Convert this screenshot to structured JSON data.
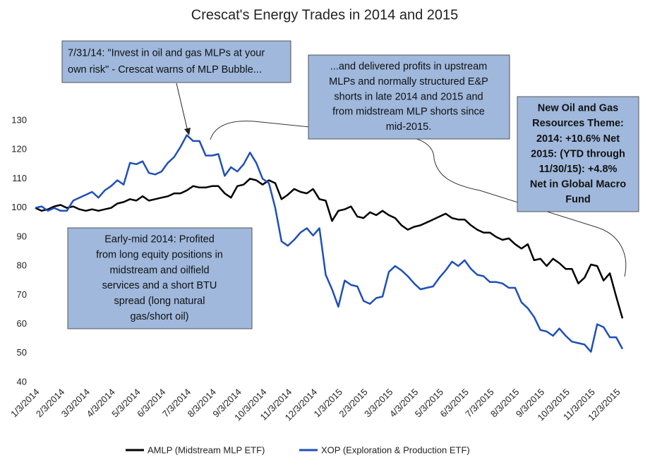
{
  "chart_data": {
    "type": "line",
    "title": "Crescat's Energy Trades in 2014 and 2015",
    "categories": [
      "1/3/2014",
      null,
      null,
      null,
      "2/3/2014",
      null,
      null,
      null,
      "3/3/2014",
      null,
      null,
      null,
      "4/3/2014",
      null,
      null,
      null,
      "5/3/2014",
      null,
      null,
      null,
      "6/3/2014",
      null,
      null,
      null,
      "7/3/2014",
      null,
      null,
      null,
      "8/3/2014",
      null,
      null,
      null,
      "9/3/2014",
      null,
      null,
      null,
      "10/3/2014",
      null,
      null,
      null,
      "11/3/2014",
      null,
      null,
      null,
      "12/3/2014",
      null,
      null,
      null,
      "1/3/2015",
      null,
      null,
      null,
      "2/3/2015",
      null,
      null,
      null,
      "3/3/2015",
      null,
      null,
      null,
      "4/3/2015",
      null,
      null,
      null,
      "5/3/2015",
      null,
      null,
      null,
      "6/3/2015",
      null,
      null,
      null,
      "7/3/2015",
      null,
      null,
      null,
      "8/3/2015",
      null,
      null,
      null,
      "9/3/2015",
      null,
      null,
      null,
      "10/3/2015",
      null,
      null,
      null,
      "11/3/2015",
      null,
      null,
      null,
      "12/3/2015",
      null
    ],
    "series": [
      {
        "name": "AMLP (Midstream MLP ETF)",
        "color": "#000000",
        "values": [
          100,
          99,
          99.5,
          100.5,
          101,
          100,
          100.5,
          99.5,
          99,
          99.5,
          99,
          99.5,
          100,
          101.5,
          102,
          103,
          102.5,
          104,
          102.5,
          103,
          103.5,
          104,
          105,
          105,
          106,
          107.5,
          107,
          107,
          107.5,
          107.5,
          105,
          103.5,
          107.5,
          108,
          110,
          109.5,
          108,
          109.5,
          108.5,
          103,
          104.5,
          106.5,
          105.5,
          105,
          106.5,
          103,
          102.5,
          95.5,
          99,
          99.5,
          100.5,
          97,
          96.5,
          98.5,
          97.5,
          99,
          97.5,
          96.5,
          94,
          92.5,
          93.5,
          94,
          95,
          96,
          97,
          98,
          96.5,
          96,
          96,
          94,
          92.5,
          91.5,
          91.5,
          90,
          89,
          89.5,
          87.5,
          86,
          87.5,
          82,
          82.5,
          80,
          82.5,
          81,
          79,
          79,
          74,
          76,
          80.5,
          80,
          75,
          77.5,
          69.5,
          62
        ]
      },
      {
        "name": "XOP (Exploration & Production ETF)",
        "color": "#1f4fb8",
        "values": [
          100,
          100.5,
          99,
          100,
          99,
          99,
          102.5,
          103.5,
          104.5,
          105.5,
          103.5,
          106,
          107.5,
          109.5,
          108,
          115.5,
          115,
          116,
          112,
          111.5,
          112.5,
          115.5,
          117.5,
          121,
          125,
          123,
          123,
          118,
          118,
          118.5,
          111,
          114,
          112.5,
          115,
          119,
          115.5,
          110,
          108.5,
          100,
          88.5,
          87,
          89,
          91.5,
          93,
          90.5,
          93,
          77,
          72,
          66,
          75,
          73.5,
          73,
          68,
          67,
          69,
          69.5,
          78,
          80,
          78.5,
          76.5,
          74,
          72,
          72.5,
          73,
          76,
          78.5,
          81.5,
          80,
          82,
          79,
          77,
          76.5,
          74.5,
          74.5,
          74,
          72.5,
          72.5,
          67.5,
          65.5,
          62.5,
          58,
          57.5,
          56,
          58.5,
          56,
          54,
          53.5,
          53,
          50.5,
          60,
          59,
          55.5,
          55.5,
          51.5
        ]
      }
    ],
    "ylim": [
      40,
      130
    ],
    "yticks": [
      40,
      50,
      60,
      70,
      80,
      90,
      100,
      110,
      120,
      130
    ],
    "grid": false,
    "legend": "bottom",
    "annotations": [
      {
        "lines": [
          "7/31/14: \"Invest in oil and gas MLPs at your",
          "own risk\" - Crescat warns of MLP Bubble..."
        ]
      },
      {
        "lines": [
          "...and delivered profits in upstream",
          "MLPs and normally structured E&P",
          "shorts in late 2014 and 2015 and",
          "from midstream MLP shorts since",
          "mid-2015."
        ]
      },
      {
        "lines": [
          "New Oil and Gas",
          "Resources Theme:",
          "2014: +10.6% Net",
          "2015: (YTD through",
          "11/30/15): +4.8%",
          "Net in Global Macro",
          "Fund"
        ]
      },
      {
        "lines": [
          "Early-mid 2014: Profited",
          "from long equity positions in",
          "midstream and oilfield",
          "services and a short BTU",
          "spread (long natural",
          "gas/short oil)"
        ]
      }
    ]
  }
}
